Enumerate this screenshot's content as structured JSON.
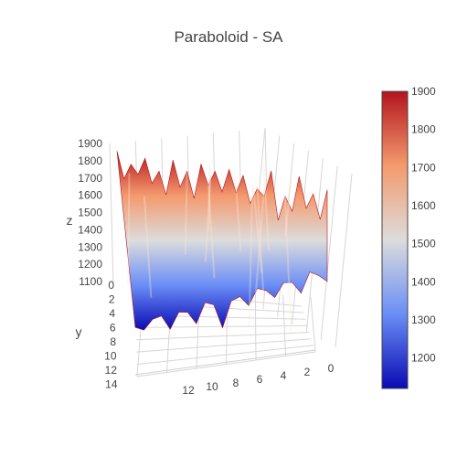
{
  "chart_data": {
    "type": "surface",
    "title": "Paraboloid - SA",
    "axes": {
      "x": {
        "label": "",
        "range": [
          0,
          14
        ],
        "ticks": [
          "0",
          "2",
          "4",
          "6",
          "8",
          "10",
          "12"
        ]
      },
      "y": {
        "label": "y",
        "range": [
          0,
          14
        ],
        "ticks": [
          "0",
          "2",
          "4",
          "6",
          "8",
          "10",
          "12",
          "14"
        ]
      },
      "z": {
        "label": "z",
        "range": [
          1050,
          1900
        ],
        "ticks": [
          "1100",
          "1200",
          "1300",
          "1400",
          "1500",
          "1600",
          "1700",
          "1800",
          "1900"
        ]
      }
    },
    "colorbar": {
      "range": [
        1120,
        1900
      ],
      "ticks": [
        "1200",
        "1300",
        "1400",
        "1500",
        "1600",
        "1700",
        "1800",
        "1900"
      ],
      "colorscale": [
        [
          0.0,
          "#0a0ab4"
        ],
        [
          0.25,
          "#6a8ef6"
        ],
        [
          0.5,
          "#dcdcdc"
        ],
        [
          0.75,
          "#f49a6e"
        ],
        [
          1.0,
          "#b4141e"
        ]
      ]
    },
    "surface": {
      "description_free": true,
      "grid_size": [
        15,
        15
      ],
      "z_min": 1120,
      "z_max": 1900
    }
  }
}
